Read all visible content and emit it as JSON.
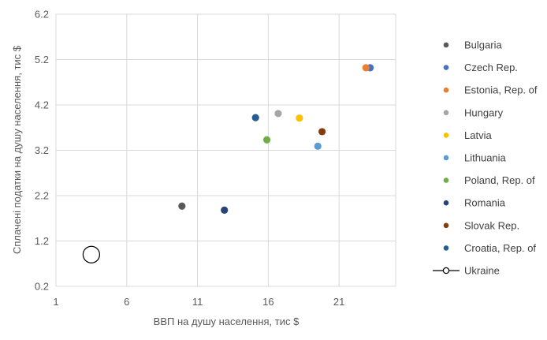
{
  "chart_data": {
    "type": "scatter",
    "xlabel": "ВВП на душу населення, тис $",
    "ylabel": "Сплачені податки на душу населення, тис $",
    "xlim": [
      1,
      25
    ],
    "ylim": [
      0.2,
      6.2
    ],
    "x_ticks": [
      "1",
      "6",
      "11",
      "16",
      "21"
    ],
    "y_ticks": [
      "0.2",
      "1.2",
      "2.2",
      "3.2",
      "4.2",
      "5.2",
      "6.2"
    ],
    "grid": true,
    "legend_position": "right",
    "series": [
      {
        "name": "Bulgaria",
        "color": "#595959",
        "marker": "dot",
        "x": 9.9,
        "y": 1.97
      },
      {
        "name": "Czech Rep.",
        "color": "#4472C4",
        "marker": "dot",
        "x": 23.2,
        "y": 5.02
      },
      {
        "name": "Estonia, Rep. of",
        "color": "#ED7D31",
        "marker": "dot",
        "x": 22.9,
        "y": 5.02
      },
      {
        "name": "Hungary",
        "color": "#A5A5A5",
        "marker": "dot",
        "x": 16.7,
        "y": 4.01
      },
      {
        "name": "Latvia",
        "color": "#FFC000",
        "marker": "dot",
        "x": 18.2,
        "y": 3.91
      },
      {
        "name": "Lithuania",
        "color": "#5B9BD5",
        "marker": "dot",
        "x": 19.5,
        "y": 3.29
      },
      {
        "name": "Poland, Rep. of",
        "color": "#70AD47",
        "marker": "dot",
        "x": 15.9,
        "y": 3.43
      },
      {
        "name": "Romania",
        "color": "#264478",
        "marker": "dot",
        "x": 12.9,
        "y": 1.88
      },
      {
        "name": "Slovak Rep.",
        "color": "#843C0C",
        "marker": "dot",
        "x": 19.8,
        "y": 3.61
      },
      {
        "name": "Croatia, Rep. of",
        "color": "#255E91",
        "marker": "dot",
        "x": 15.1,
        "y": 3.92
      },
      {
        "name": "Ukraine",
        "color": "#000000",
        "marker": "hollow-circle",
        "x": 3.5,
        "y": 0.9
      }
    ]
  }
}
